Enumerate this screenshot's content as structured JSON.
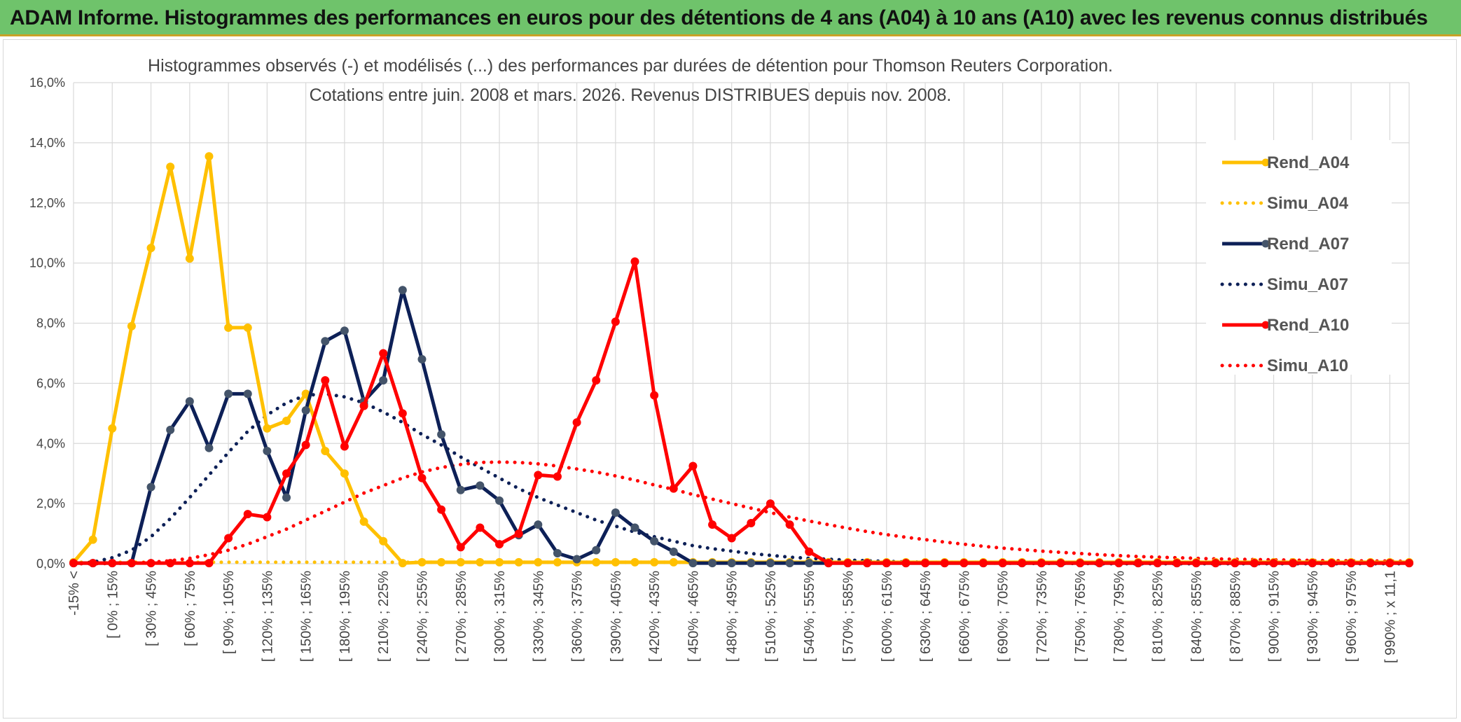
{
  "banner": {
    "title": "ADAM Informe. Histogrammes des performances en euros pour des détentions de 4 ans (A04) à 10 ans (A10) avec les revenus connus distribués"
  },
  "colors": {
    "a04": "#ffc000",
    "a07": "#0d2057",
    "a10": "#ff0000",
    "grid": "#d9d9d9",
    "banner": "#6fc36b"
  },
  "chart_data": {
    "type": "line",
    "title": "Histogrammes observés (-) et modélisés (...) des performances par durées de détention pour Thomson Reuters Corporation.",
    "subtitle": "Cotations entre juin. 2008 et mars. 2026. Revenus DISTRIBUES depuis nov. 2008.",
    "xlabel": "",
    "ylabel": "",
    "ylim": [
      0,
      16
    ],
    "yticks": [
      "0,0%",
      "2,0%",
      "4,0%",
      "6,0%",
      "8,0%",
      "10,0%",
      "12,0%",
      "14,0%",
      "16,0%"
    ],
    "grid": true,
    "legend_position": "right",
    "x_labels": [
      "-15% <",
      "[ 0% ; 15%",
      "[ 30% ; 45%",
      "[ 60% ; 75%",
      "[ 90% ; 105%",
      "[ 120% ; 135%",
      "[ 150% ; 165%",
      "[ 180% ; 195%",
      "[ 210% ; 225%",
      "[ 240% ; 255%",
      "[ 270% ; 285%",
      "[ 300% ; 315%",
      "[ 330% ; 345%",
      "[ 360% ; 375%",
      "[ 390% ; 405%",
      "[ 420% ; 435%",
      "[ 450% ; 465%",
      "[ 480% ; 495%",
      "[ 510% ; 525%",
      "[ 540% ; 555%",
      "[ 570% ; 585%",
      "[ 600% ; 615%",
      "[ 630% ; 645%",
      "[ 660% ; 675%",
      "[ 690% ; 705%",
      "[ 720% ; 735%",
      "[ 750% ; 765%",
      "[ 780% ; 795%",
      "[ 810% ; 825%",
      "[ 840% ; 855%",
      "[ 870% ; 885%",
      "[ 900% ; 915%",
      "[ 930% ; 945%",
      "[ 960% ; 975%",
      "[ 990% ; x 11,1"
    ],
    "n_points": 70,
    "series": [
      {
        "name": "Rend_A04",
        "style": "solid",
        "color": "#ffc000",
        "markers": true,
        "values": [
          0.05,
          0.8,
          4.5,
          7.9,
          10.5,
          13.2,
          10.15,
          13.55,
          7.85,
          7.85,
          4.5,
          4.75,
          5.65,
          3.75,
          3.0,
          1.4,
          0.75,
          0.02,
          0.05,
          0.05,
          0.05,
          0.05,
          0.05,
          0.05,
          0.05,
          0.05,
          0.05,
          0.05,
          0.05,
          0.05,
          0.05,
          0.05,
          0.05,
          0.05,
          0.05,
          0.05,
          0.05,
          0.05,
          0.05,
          0.05,
          0.05,
          0.05,
          0.05,
          0.05,
          0.05,
          0.05,
          0.05,
          0.05,
          0.05,
          0.05,
          0.05,
          0.05,
          0.05,
          0.05,
          0.05,
          0.05,
          0.05,
          0.05,
          0.05,
          0.05,
          0.05,
          0.05,
          0.05,
          0.05,
          0.05,
          0.05,
          0.05,
          0.05,
          0.05,
          0.05
        ]
      },
      {
        "name": "Simu_A04",
        "style": "dotted",
        "color": "#ffc000",
        "markers": false,
        "values": [
          0.05,
          0.05,
          0.05,
          0.05,
          0.05,
          0.05,
          0.05,
          0.05,
          0.05,
          0.05,
          0.05,
          0.05,
          0.05,
          0.05,
          0.05,
          0.05,
          0.05,
          0.05,
          0.05,
          0.05,
          0.05,
          0.05,
          0.05,
          0.05,
          0.05,
          0.05,
          0.05,
          0.05,
          0.05,
          0.05,
          0.05,
          0.05,
          0.05,
          0.05,
          0.05,
          0.05,
          0.05,
          0.05,
          0.05,
          0.05,
          0.05,
          0.05,
          0.05,
          0.05,
          0.05,
          0.05,
          0.05,
          0.05,
          0.05,
          0.05,
          0.05,
          0.05,
          0.05,
          0.05,
          0.05,
          0.05,
          0.05,
          0.05,
          0.05,
          0.05,
          0.05,
          0.05,
          0.05,
          0.05,
          0.05,
          0.05,
          0.05,
          0.05,
          0.05,
          0.05
        ]
      },
      {
        "name": "Rend_A07",
        "style": "solid",
        "color": "#0d2057",
        "markers": true,
        "values": [
          0.02,
          0.02,
          0.02,
          0.02,
          2.55,
          4.45,
          5.4,
          3.85,
          5.65,
          5.65,
          3.75,
          2.2,
          5.1,
          7.4,
          7.75,
          5.4,
          6.1,
          9.1,
          6.8,
          4.3,
          2.45,
          2.6,
          2.1,
          0.95,
          1.3,
          0.35,
          0.15,
          0.45,
          1.7,
          1.2,
          0.75,
          0.4,
          0.02,
          0.02,
          0.02,
          0.02,
          0.02,
          0.02,
          0.02,
          0.02,
          0.02,
          0.02,
          0.02,
          0.02,
          0.02,
          0.02,
          0.02,
          0.02,
          0.02,
          0.02,
          0.02,
          0.02,
          0.02,
          0.02,
          0.02,
          0.02,
          0.02,
          0.02,
          0.02,
          0.02,
          0.02,
          0.02,
          0.02,
          0.02,
          0.02,
          0.02,
          0.02,
          0.02,
          0.02,
          0.02
        ]
      },
      {
        "name": "Simu_A07",
        "style": "dotted",
        "color": "#0d2057",
        "markers": false,
        "values": [
          0.0,
          0.05,
          0.2,
          0.45,
          0.9,
          1.5,
          2.2,
          2.95,
          3.7,
          4.4,
          4.95,
          5.35,
          5.6,
          5.65,
          5.55,
          5.35,
          5.05,
          4.7,
          4.3,
          3.95,
          3.55,
          3.2,
          2.85,
          2.5,
          2.2,
          1.95,
          1.7,
          1.45,
          1.25,
          1.05,
          0.9,
          0.75,
          0.6,
          0.5,
          0.42,
          0.34,
          0.28,
          0.22,
          0.18,
          0.15,
          0.12,
          0.1,
          0.08,
          0.06,
          0.05,
          0.04,
          0.03,
          0.02,
          0.02,
          0.01,
          0.01,
          0.01,
          0.01,
          0.0,
          0.0,
          0.0,
          0.0,
          0.0,
          0.0,
          0.0,
          0.0,
          0.0,
          0.0,
          0.0,
          0.0,
          0.0,
          0.0,
          0.0,
          0.0,
          0.0
        ]
      },
      {
        "name": "Rend_A10",
        "style": "solid",
        "color": "#ff0000",
        "markers": true,
        "values": [
          0.02,
          0.02,
          0.02,
          0.02,
          0.02,
          0.02,
          0.02,
          0.02,
          0.85,
          1.65,
          1.55,
          3.0,
          3.95,
          6.1,
          3.9,
          5.25,
          7.0,
          5.0,
          2.85,
          1.8,
          0.55,
          1.2,
          0.65,
          1.0,
          2.95,
          2.9,
          4.7,
          6.1,
          8.05,
          10.05,
          5.6,
          2.5,
          3.25,
          1.3,
          0.85,
          1.35,
          2.0,
          1.3,
          0.4,
          0.02,
          0.02,
          0.02,
          0.02,
          0.02,
          0.02,
          0.02,
          0.02,
          0.02,
          0.02,
          0.02,
          0.02,
          0.02,
          0.02,
          0.02,
          0.02,
          0.02,
          0.02,
          0.02,
          0.02,
          0.02,
          0.02,
          0.02,
          0.02,
          0.02,
          0.02,
          0.02,
          0.02,
          0.02,
          0.02,
          0.02
        ]
      },
      {
        "name": "Simu_A10",
        "style": "dotted",
        "color": "#ff0000",
        "markers": false,
        "values": [
          0.0,
          0.0,
          0.01,
          0.02,
          0.05,
          0.1,
          0.18,
          0.3,
          0.45,
          0.65,
          0.9,
          1.15,
          1.45,
          1.75,
          2.05,
          2.35,
          2.6,
          2.85,
          3.05,
          3.2,
          3.3,
          3.37,
          3.38,
          3.37,
          3.32,
          3.25,
          3.15,
          3.05,
          2.92,
          2.78,
          2.62,
          2.47,
          2.3,
          2.15,
          2.0,
          1.85,
          1.7,
          1.55,
          1.42,
          1.3,
          1.18,
          1.07,
          0.97,
          0.88,
          0.8,
          0.72,
          0.65,
          0.58,
          0.52,
          0.47,
          0.42,
          0.38,
          0.34,
          0.3,
          0.27,
          0.24,
          0.22,
          0.2,
          0.18,
          0.16,
          0.15,
          0.14,
          0.13,
          0.12,
          0.11,
          0.1,
          0.1,
          0.09,
          0.09,
          0.08
        ]
      }
    ]
  }
}
